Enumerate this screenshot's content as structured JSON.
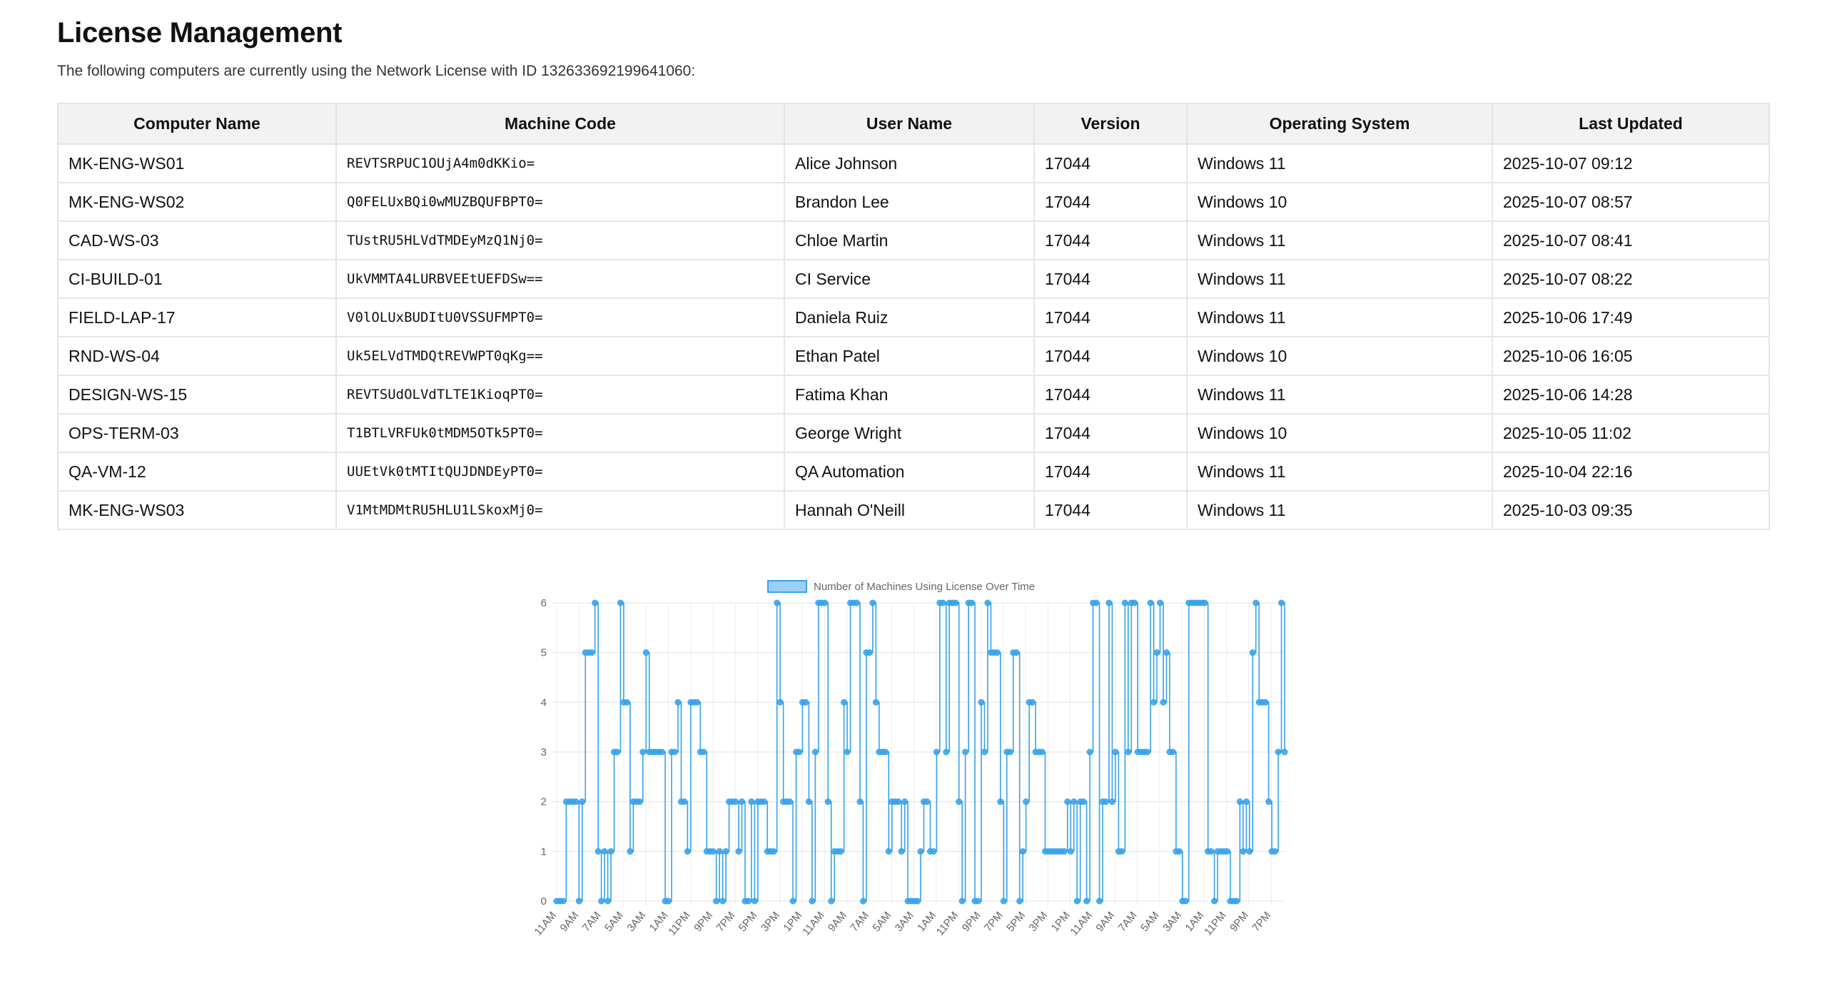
{
  "page": {
    "title": "License Management",
    "subtitle": "The following computers are currently using the Network License with ID 132633692199641060:"
  },
  "table": {
    "columns": [
      "Computer Name",
      "Machine Code",
      "User Name",
      "Version",
      "Operating System",
      "Last Updated"
    ],
    "rows": [
      [
        "MK-ENG-WS01",
        "REVTSRPUC1OUjA4m0dKKio=",
        "Alice Johnson",
        "17044",
        "Windows 11",
        "2025-10-07 09:12"
      ],
      [
        "MK-ENG-WS02",
        "Q0FELUxBQi0wMUZBQUFBPT0=",
        "Brandon Lee",
        "17044",
        "Windows 10",
        "2025-10-07 08:57"
      ],
      [
        "CAD-WS-03",
        "TUstRU5HLVdTMDEyMzQ1Nj0=",
        "Chloe Martin",
        "17044",
        "Windows 11",
        "2025-10-07 08:41"
      ],
      [
        "CI-BUILD-01",
        "UkVMMTA4LURBVEEtUEFDSw==",
        "CI Service",
        "17044",
        "Windows 11",
        "2025-10-07 08:22"
      ],
      [
        "FIELD-LAP-17",
        "V0lOLUxBUDItU0VSSUFMPT0=",
        "Daniela Ruiz",
        "17044",
        "Windows 11",
        "2025-10-06 17:49"
      ],
      [
        "RND-WS-04",
        "Uk5ELVdTMDQtREVWPT0qKg==",
        "Ethan Patel",
        "17044",
        "Windows 10",
        "2025-10-06 16:05"
      ],
      [
        "DESIGN-WS-15",
        "REVTSUdOLVdTLTE1KioqPT0=",
        "Fatima Khan",
        "17044",
        "Windows 11",
        "2025-10-06 14:28"
      ],
      [
        "OPS-TERM-03",
        "T1BTLVRFUk0tMDM5OTk5PT0=",
        "George Wright",
        "17044",
        "Windows 10",
        "2025-10-05 11:02"
      ],
      [
        "QA-VM-12",
        "UUEtVk0tMTItQUJDNDEyPT0=",
        "QA Automation",
        "17044",
        "Windows 11",
        "2025-10-04 22:16"
      ],
      [
        "MK-ENG-WS03",
        "V1MtMDMtRU5HLU1LSkoxMj0=",
        "Hannah O'Neill",
        "17044",
        "Windows 11",
        "2025-10-03 09:35"
      ]
    ]
  },
  "chart_data": {
    "type": "line",
    "stepped": true,
    "legend": {
      "label": "Number of Machines Using License Over Time",
      "position": "top"
    },
    "color": "#36a2eb",
    "fill_color": "#9ad0f5",
    "ylim": [
      0,
      6
    ],
    "y_ticks": [
      "0",
      "1",
      "2",
      "3",
      "4",
      "5",
      "6"
    ],
    "grid": true,
    "x_tick_labels": [
      "11AM",
      "9AM",
      "7AM",
      "5AM",
      "3AM",
      "1AM",
      "11PM",
      "9PM",
      "7PM",
      "5PM",
      "3PM",
      "1PM",
      "11AM",
      "9AM",
      "7AM",
      "5AM",
      "3AM",
      "1AM",
      "11PM",
      "9PM",
      "7PM",
      "5PM",
      "3PM",
      "1PM",
      "11AM",
      "9AM",
      "7AM",
      "5AM",
      "3AM",
      "1AM",
      "11PM",
      "9PM",
      "7PM"
    ],
    "values": [
      0,
      0,
      0,
      2,
      2,
      2,
      2,
      0,
      2,
      5,
      5,
      5,
      6,
      1,
      0,
      1,
      0,
      1,
      3,
      3,
      6,
      4,
      4,
      1,
      2,
      2,
      2,
      3,
      5,
      3,
      3,
      3,
      3,
      3,
      0,
      0,
      3,
      3,
      4,
      2,
      2,
      1,
      4,
      4,
      4,
      3,
      3,
      1,
      1,
      1,
      0,
      1,
      0,
      1,
      2,
      2,
      2,
      1,
      2,
      0,
      0,
      2,
      0,
      2,
      2,
      2,
      1,
      1,
      1,
      6,
      4,
      2,
      2,
      2,
      0,
      3,
      3,
      4,
      4,
      2,
      0,
      3,
      6,
      6,
      6,
      2,
      0,
      1,
      1,
      1,
      4,
      3,
      6,
      6,
      6,
      2,
      0,
      5,
      5,
      6,
      4,
      3,
      3,
      3,
      1,
      2,
      2,
      2,
      1,
      2,
      0,
      0,
      0,
      0,
      1,
      2,
      2,
      1,
      1,
      3,
      6,
      6,
      3,
      6,
      6,
      6,
      2,
      0,
      3,
      6,
      6,
      0,
      0,
      4,
      3,
      6,
      5,
      5,
      5,
      2,
      0,
      3,
      3,
      5,
      5,
      0,
      1,
      2,
      4,
      4,
      3,
      3,
      3,
      1,
      1,
      1,
      1,
      1,
      1,
      1,
      2,
      1,
      2,
      0,
      2,
      2,
      0,
      3,
      6,
      6,
      0,
      2,
      2,
      6,
      2,
      3,
      1,
      1,
      6,
      3,
      6,
      6,
      3,
      3,
      3,
      3,
      6,
      4,
      5,
      6,
      4,
      5,
      3,
      3,
      1,
      1,
      0,
      0,
      6,
      6,
      6,
      6,
      6,
      6,
      1,
      1,
      0,
      1,
      1,
      1,
      1,
      0,
      0,
      0,
      2,
      1,
      2,
      1,
      5,
      6,
      4,
      4,
      4,
      2,
      1,
      1,
      3,
      6,
      3
    ]
  }
}
